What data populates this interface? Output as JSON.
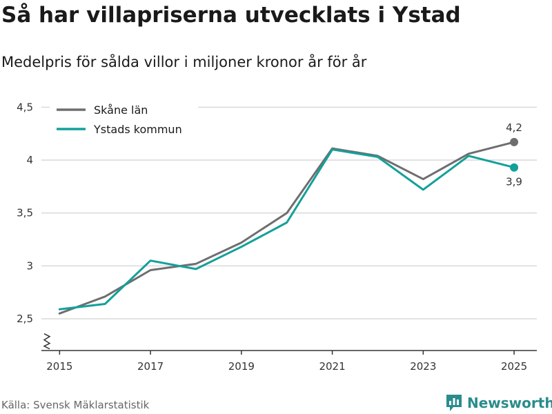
{
  "header": {
    "title": "Så har villapriserna utvecklats i Ystad",
    "subtitle": "Medelpris för sålda villor i miljoner kronor år för år"
  },
  "footer": {
    "source": "Källa: Svensk Mäklarstatistik",
    "brand": "Newsworthy",
    "brand_icon": "bar-chart-speech-bubble-icon"
  },
  "colors": {
    "skane": "#6e6e70",
    "ystad": "#13a09a",
    "grid": "#d9d9d9",
    "axis": "#333333"
  },
  "chart_data": {
    "type": "line",
    "title": "Så har villapriserna utvecklats i Ystad",
    "subtitle": "Medelpris för sålda villor i miljoner kronor år för år",
    "xlabel": "",
    "ylabel": "",
    "x": [
      2015,
      2016,
      2017,
      2018,
      2019,
      2020,
      2021,
      2022,
      2023,
      2024,
      2025
    ],
    "xticks": [
      "2015",
      "2017",
      "2019",
      "2021",
      "2023",
      "2025"
    ],
    "yticks": [
      "2,5",
      "3",
      "3,5",
      "4",
      "4,5"
    ],
    "ytick_values": [
      2.5,
      3,
      3.5,
      4,
      4.5
    ],
    "ylim": [
      2.2,
      4.6
    ],
    "xlim": [
      2014.6,
      2025.5
    ],
    "grid": true,
    "axis_break": true,
    "legend_position": "top-left",
    "series": [
      {
        "name": "Skåne län",
        "color": "#6e6e70",
        "values": [
          2.55,
          2.71,
          2.96,
          3.02,
          3.22,
          3.5,
          4.11,
          4.04,
          3.82,
          4.06,
          4.17
        ],
        "end_label": "4,2",
        "end_label_position": "above"
      },
      {
        "name": "Ystads kommun",
        "color": "#13a09a",
        "values": [
          2.59,
          2.64,
          3.05,
          2.97,
          3.18,
          3.41,
          4.1,
          4.03,
          3.72,
          4.04,
          3.93
        ],
        "end_label": "3,9",
        "end_label_position": "below"
      }
    ]
  }
}
